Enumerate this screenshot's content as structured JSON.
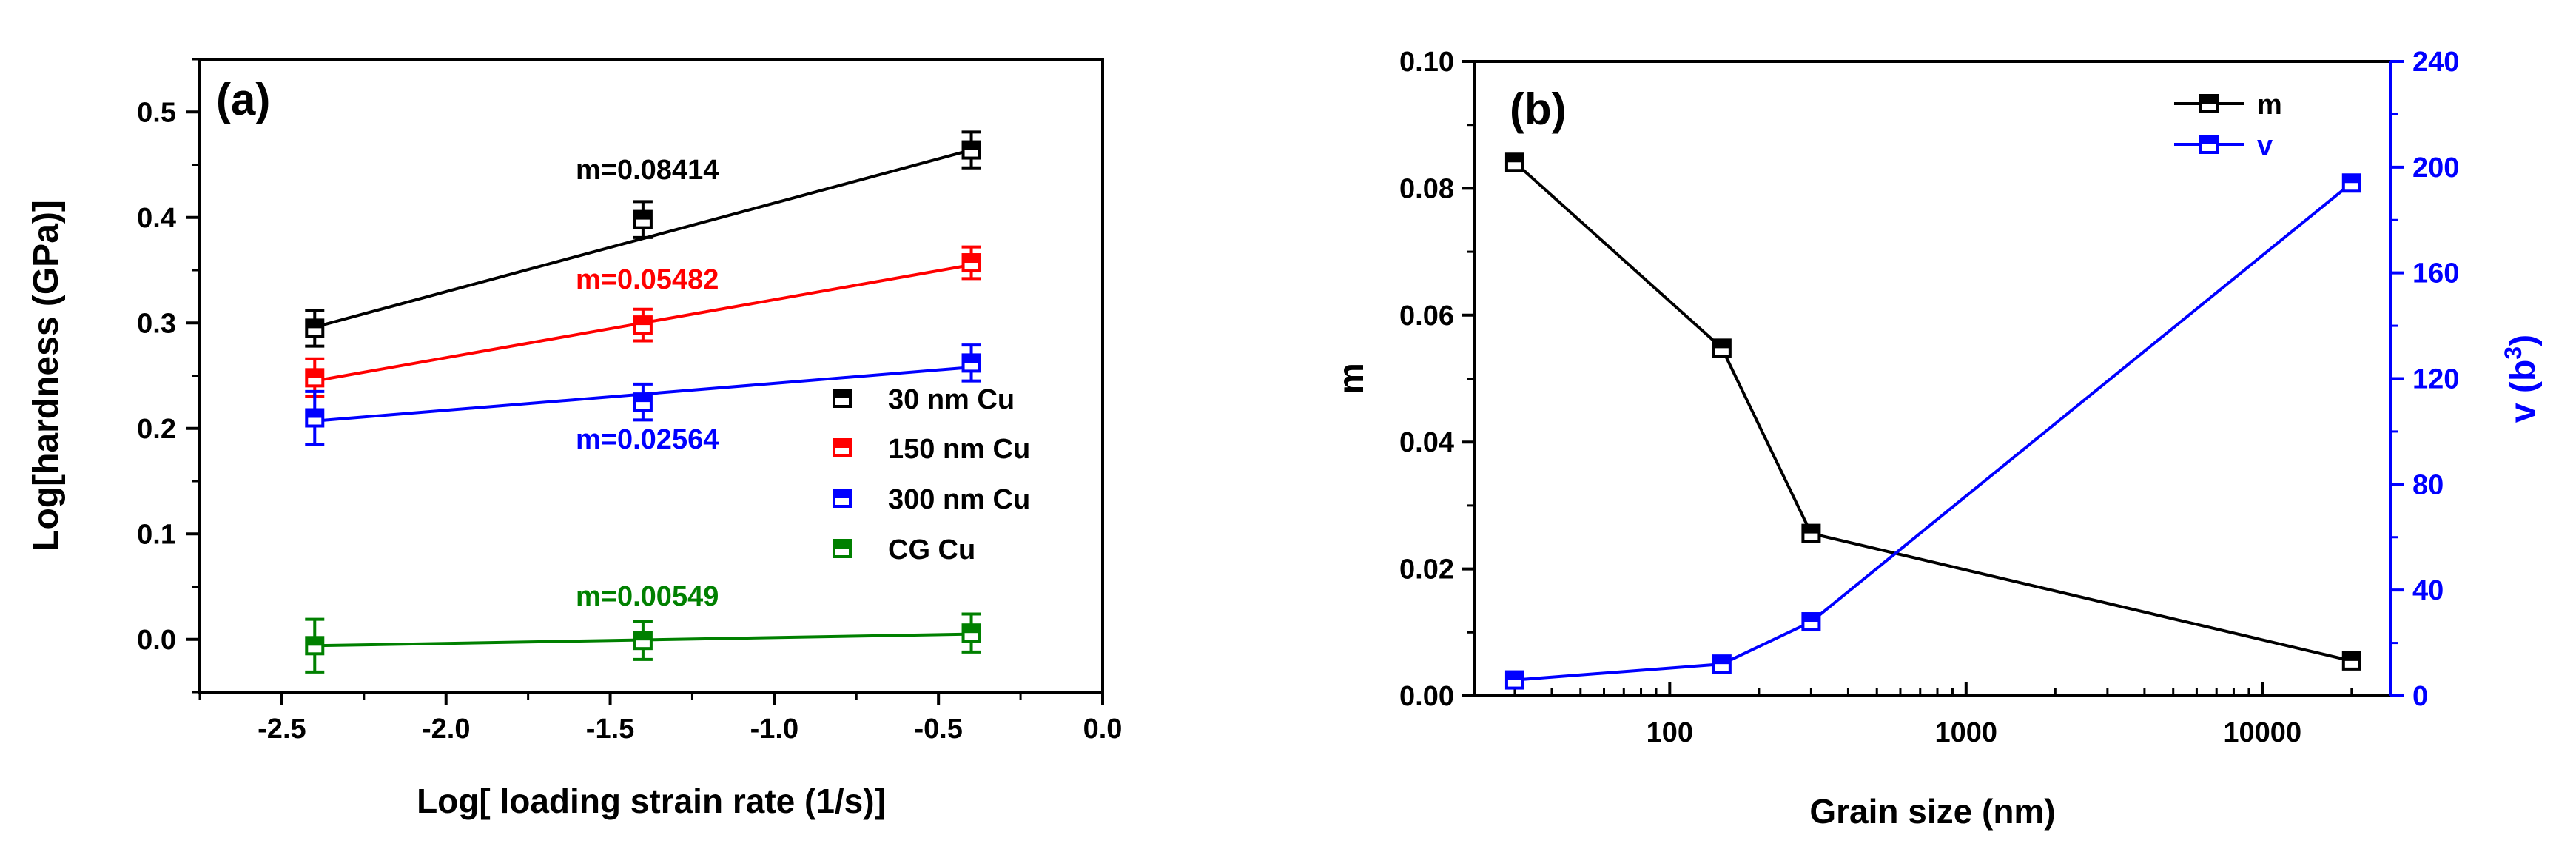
{
  "chart_data": [
    {
      "type": "scatter",
      "panel_label": "(a)",
      "xlabel": "Log[ loading strain rate (1/s)]",
      "ylabel": "Log[hardness (GPa)]",
      "xlim": [
        -2.75,
        0.0
      ],
      "ylim": [
        -0.05,
        0.55
      ],
      "xticks": [
        -2.5,
        -2.0,
        -1.5,
        -1.0,
        -0.5,
        0.0
      ],
      "xtick_labels": [
        "-2.5",
        "-2.0",
        "-1.5",
        "-1.0",
        "-0.5",
        "0.0"
      ],
      "yticks": [
        0.0,
        0.1,
        0.2,
        0.3,
        0.4,
        0.5
      ],
      "ytick_labels": [
        "0.0",
        "0.1",
        "0.2",
        "0.3",
        "0.4",
        "0.5"
      ],
      "legend_position": "center-right",
      "series": [
        {
          "name": "30 nm Cu",
          "color": "#000000",
          "x": [
            -2.4,
            -1.4,
            -0.4
          ],
          "y": [
            0.295,
            0.398,
            0.464
          ],
          "err": [
            0.017,
            0.017,
            0.017
          ],
          "fit": {
            "x": [
              -2.4,
              -0.4
            ],
            "y": [
              0.296,
              0.464
            ]
          },
          "annotation": "m=0.08414"
        },
        {
          "name": "150 nm Cu",
          "color": "#ff0000",
          "x": [
            -2.4,
            -1.4,
            -0.4
          ],
          "y": [
            0.248,
            0.298,
            0.357
          ],
          "err": [
            0.018,
            0.015,
            0.015
          ],
          "fit": {
            "x": [
              -2.4,
              -0.4
            ],
            "y": [
              0.245,
              0.355
            ]
          },
          "annotation": "m=0.05482"
        },
        {
          "name": "300 nm Cu",
          "color": "#0000ff",
          "x": [
            -2.4,
            -1.4,
            -0.4
          ],
          "y": [
            0.21,
            0.225,
            0.262
          ],
          "err": [
            0.025,
            0.017,
            0.017
          ],
          "fit": {
            "x": [
              -2.4,
              -0.4
            ],
            "y": [
              0.207,
              0.258
            ]
          },
          "annotation": "m=0.02564"
        },
        {
          "name": "CG Cu",
          "color": "#008000",
          "x": [
            -2.4,
            -1.4,
            -0.4
          ],
          "y": [
            -0.006,
            -0.001,
            0.006
          ],
          "err": [
            0.025,
            0.018,
            0.018
          ],
          "fit": {
            "x": [
              -2.4,
              -0.4
            ],
            "y": [
              -0.006,
              0.005
            ]
          },
          "annotation": "m=0.00549"
        }
      ]
    },
    {
      "type": "line",
      "panel_label": "(b)",
      "xlabel": "Grain size (nm)",
      "ylabel_left": "m",
      "ylabel_right_base": "v (b",
      "ylabel_right_sup": "3",
      "ylabel_right_end": ")",
      "xscale": "log",
      "xlim": [
        22,
        27000
      ],
      "ylim_left": [
        0.0,
        0.1
      ],
      "ylim_right": [
        0,
        240
      ],
      "xticks": [
        100,
        1000,
        10000
      ],
      "xtick_labels": [
        "100",
        "1000",
        "10000"
      ],
      "yticks_left": [
        0.0,
        0.02,
        0.04,
        0.06,
        0.08,
        0.1
      ],
      "ytick_labels_left": [
        "0.00",
        "0.02",
        "0.04",
        "0.06",
        "0.08",
        "0.10"
      ],
      "yticks_right": [
        0,
        40,
        80,
        120,
        160,
        200,
        240
      ],
      "ytick_labels_right": [
        "0",
        "40",
        "80",
        "120",
        "160",
        "200",
        "240"
      ],
      "right_axis_color": "#0000ff",
      "legend_position": "top-right",
      "series": [
        {
          "name": "m",
          "color": "#000000",
          "axis": "left",
          "x": [
            30,
            150,
            300,
            20000
          ],
          "y": [
            0.0841,
            0.0548,
            0.0256,
            0.0055
          ]
        },
        {
          "name": "v",
          "color": "#0000ff",
          "axis": "right",
          "x": [
            30,
            150,
            300,
            20000
          ],
          "y": [
            6,
            12,
            28,
            194
          ]
        }
      ]
    }
  ]
}
